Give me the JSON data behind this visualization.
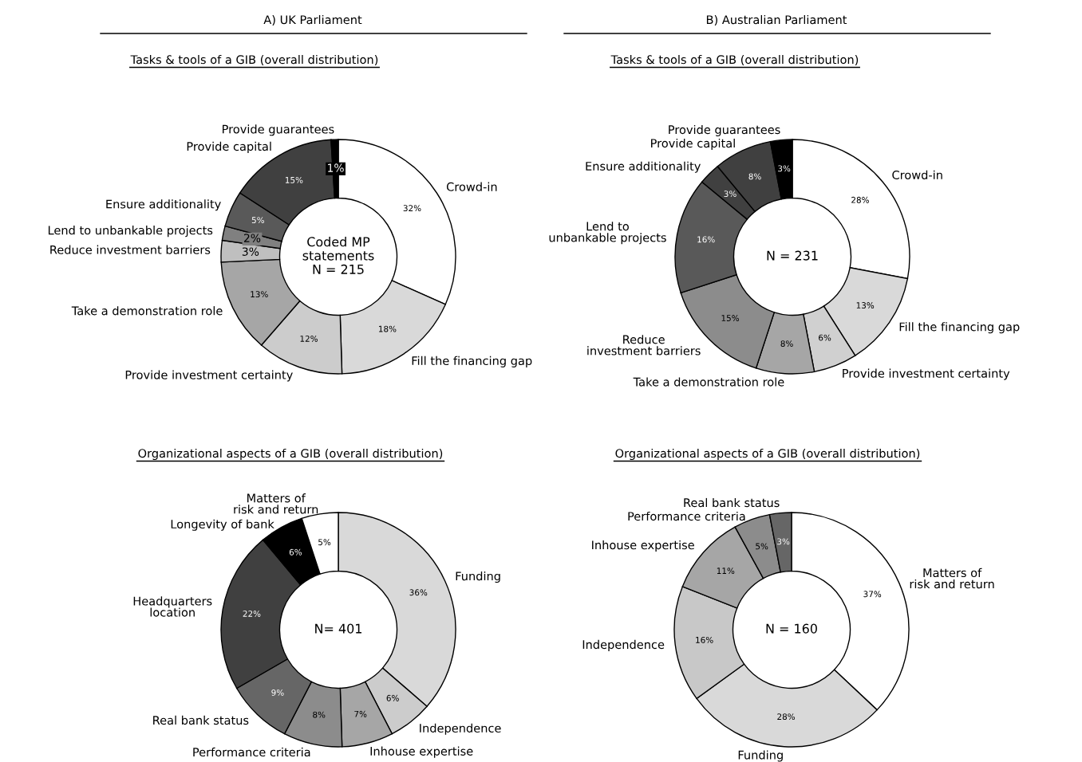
{
  "chart_data": [
    {
      "type": "donut",
      "title": "Tasks & tools of a GIB (overall distribution)",
      "annotations": [
        "A) UK Parliament",
        "Coded MP\nstatements\nN = 215"
      ],
      "categories": [
        "Crowd-in",
        "Fill the financing gap",
        "Provide investment certainty",
        "Take a demonstration role",
        "Reduce investment barriers",
        "Lend to unbankable projects",
        "Ensure additionality",
        "Provide capital",
        "Provide guarantees"
      ],
      "values": [
        32,
        18,
        12,
        13,
        3,
        2,
        5,
        15,
        1
      ],
      "value_labels": [
        "32%",
        "18%",
        "12%",
        "13%",
        "3%",
        "2%",
        "5%",
        "15%",
        "1%"
      ],
      "colors": [
        "#ffffff",
        "#d9d9d9",
        "#cccccc",
        "#a6a6a6",
        "#bfbfbf",
        "#808080",
        "#595959",
        "#404040",
        "#000000"
      ]
    },
    {
      "type": "donut",
      "title": "Tasks & tools of a GIB (overall distribution)",
      "annotations": [
        "B) Australian Parliament",
        "N = 231"
      ],
      "categories": [
        "Crowd-in",
        "Fill the financing gap",
        "Provide investment certainty",
        "Take a demonstration role",
        "Reduce\ninvestment barriers",
        "Lend to\nunbankable projects",
        "Ensure additionality",
        "Provide capital",
        "Provide guarantees"
      ],
      "values": [
        28,
        13,
        6,
        8,
        15,
        16,
        3,
        8,
        3
      ],
      "value_labels": [
        "28%",
        "13%",
        "6%",
        "8%",
        "15%",
        "16%",
        "3%",
        "8%",
        "3%"
      ],
      "colors": [
        "#ffffff",
        "#d9d9d9",
        "#d0d0d0",
        "#a6a6a6",
        "#8c8c8c",
        "#595959",
        "#404040",
        "#404040",
        "#000000"
      ]
    },
    {
      "type": "donut",
      "title": "Organizational aspects of a GIB (overall distribution)",
      "annotations": [
        "N= 401"
      ],
      "categories": [
        "Funding",
        "Independence",
        "Inhouse expertise",
        "Performance criteria",
        "Real bank status",
        "Headquarters\nlocation",
        "Longevity of bank",
        "Matters of\nrisk and return"
      ],
      "values": [
        36,
        6,
        7,
        8,
        9,
        22,
        6,
        5
      ],
      "value_labels": [
        "36%",
        "6%",
        "7%",
        "8%",
        "9%",
        "22%",
        "6%",
        "5%"
      ],
      "colors": [
        "#d9d9d9",
        "#cccccc",
        "#a6a6a6",
        "#8c8c8c",
        "#666666",
        "#404040",
        "#000000",
        "#ffffff"
      ]
    },
    {
      "type": "donut",
      "title": "Organizational aspects of a GIB (overall distribution)",
      "annotations": [
        "N = 160"
      ],
      "categories": [
        "Matters of\nrisk and return",
        "Funding",
        "Independence",
        "Inhouse expertise",
        "Performance criteria",
        "Real bank status"
      ],
      "values": [
        37,
        28,
        16,
        11,
        5,
        3
      ],
      "value_labels": [
        "37%",
        "28%",
        "16%",
        "11%",
        "5%",
        "3%"
      ],
      "colors": [
        "#ffffff",
        "#d9d9d9",
        "#c8c8c8",
        "#a6a6a6",
        "#8c8c8c",
        "#666666"
      ]
    }
  ]
}
